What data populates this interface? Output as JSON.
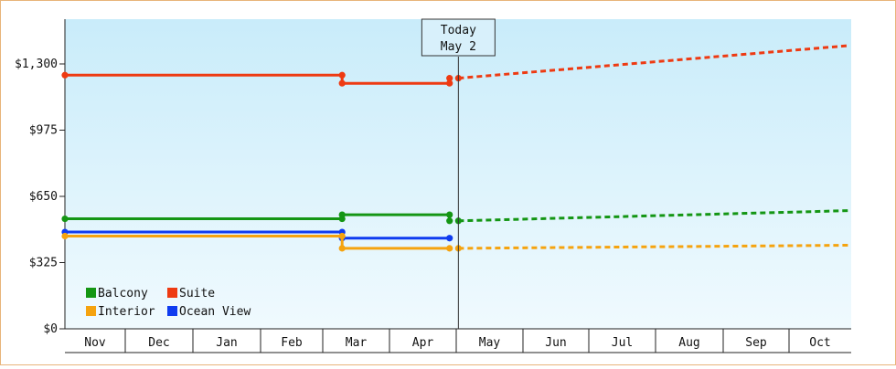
{
  "chart_data": {
    "type": "line",
    "y_axis": {
      "ticks": [
        "$0",
        "$325",
        "$650",
        "$975",
        "$1,300"
      ],
      "min": 0,
      "max": 1300,
      "ylim": [
        0,
        1300
      ]
    },
    "x_axis": {
      "months": [
        "Nov",
        "Dec",
        "Jan",
        "Feb",
        "Mar",
        "Apr",
        "May",
        "Jun",
        "Jul",
        "Aug",
        "Sep",
        "Oct"
      ]
    },
    "today_marker": {
      "line1": "Today",
      "line2": "May 2"
    },
    "background": {
      "top": "#c9ecfa",
      "bottom": "#f0fafe"
    },
    "series": [
      {
        "name": "Suite",
        "color": "#ee3a12",
        "history": [
          [
            "Nov 1",
            1245
          ],
          [
            "Mar 10",
            1245
          ],
          [
            "Mar 10",
            1205
          ],
          [
            "Apr 28",
            1205
          ],
          [
            "Apr 28",
            1230
          ]
        ],
        "projection": [
          [
            "May 2",
            1230
          ],
          [
            "Oct 31",
            1390
          ]
        ]
      },
      {
        "name": "Balcony",
        "color": "#149614",
        "history": [
          [
            "Nov 1",
            540
          ],
          [
            "Mar 10",
            540
          ],
          [
            "Mar 10",
            560
          ],
          [
            "Apr 28",
            560
          ],
          [
            "Apr 28",
            530
          ]
        ],
        "projection": [
          [
            "May 2",
            530
          ],
          [
            "Oct 31",
            580
          ]
        ]
      },
      {
        "name": "Ocean View",
        "color": "#0f3cf0",
        "history": [
          [
            "Nov 1",
            475
          ],
          [
            "Mar 10",
            475
          ],
          [
            "Mar 10",
            445
          ],
          [
            "Apr 28",
            445
          ]
        ],
        "projection": []
      },
      {
        "name": "Interior",
        "color": "#f5a30f",
        "history": [
          [
            "Nov 1",
            455
          ],
          [
            "Mar 10",
            455
          ],
          [
            "Mar 10",
            395
          ],
          [
            "Apr 28",
            395
          ]
        ],
        "projection": [
          [
            "May 2",
            395
          ],
          [
            "Oct 31",
            410
          ]
        ]
      }
    ],
    "legend": {
      "position": "bottom-left",
      "items": [
        {
          "label": "Balcony",
          "color": "#149614"
        },
        {
          "label": "Suite",
          "color": "#ee3a12"
        },
        {
          "label": "Interior",
          "color": "#f5a30f"
        },
        {
          "label": "Ocean View",
          "color": "#0f3cf0"
        }
      ]
    }
  }
}
